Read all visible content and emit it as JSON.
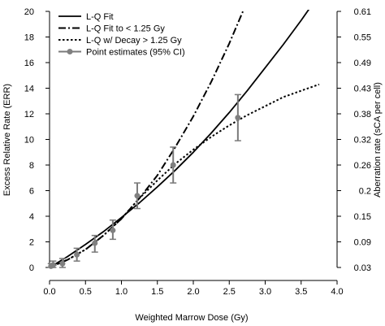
{
  "chart_data": {
    "type": "line",
    "xlabel": "Weighted Marrow Dose (Gy)",
    "ylabel": "Excess Relative Rate (ERR)",
    "y2label": "Aberration rate (sCA per cell)",
    "xlim": [
      0,
      4.0
    ],
    "ylim": [
      0,
      20
    ],
    "xticks": [
      "0.0",
      "0.5",
      "1.0",
      "1.5",
      "2.0",
      "2.5",
      "3.0",
      "3.5",
      "4.0"
    ],
    "yticks": [
      "0",
      "2",
      "4",
      "6",
      "8",
      "10",
      "12",
      "14",
      "16",
      "18",
      "20"
    ],
    "y2ticks": [
      "0.03",
      "0.09",
      "0.15",
      "0.2",
      "0.26",
      "0.32",
      "0.38",
      "0.43",
      "0.49",
      "0.55",
      "0.61"
    ],
    "grid": false,
    "legend_position": "top-left",
    "series": [
      {
        "name": "L-Q Fit",
        "style": "solid",
        "x": [
          0,
          0.25,
          0.5,
          0.75,
          1.0,
          1.25,
          1.5,
          1.75,
          2.0,
          2.25,
          2.5,
          2.75,
          3.0,
          3.25,
          3.5,
          3.75,
          4.0
        ],
        "y": [
          0,
          0.85,
          1.8,
          2.8,
          3.9,
          5.05,
          6.3,
          7.6,
          9.0,
          10.5,
          12.1,
          13.8,
          15.6,
          17.4,
          19.3,
          21.3,
          23.4
        ]
      },
      {
        "name": "L-Q Fit to < 1.25 Gy",
        "style": "dashdot",
        "x": [
          0,
          0.25,
          0.5,
          0.75,
          1.0,
          1.25,
          1.5,
          1.75,
          2.0,
          2.25,
          2.5,
          2.75,
          3.0,
          3.25
        ],
        "y": [
          0,
          0.6,
          1.4,
          2.5,
          3.8,
          5.4,
          7.2,
          9.4,
          11.8,
          14.5,
          17.5,
          20.8,
          24.4,
          28.3
        ]
      },
      {
        "name": "L-Q w/ Decay > 1.25 Gy",
        "style": "dotted",
        "x": [
          0,
          0.25,
          0.5,
          0.75,
          1.0,
          1.25,
          1.5,
          1.75,
          2.0,
          2.25,
          2.5,
          2.75,
          3.0,
          3.25,
          3.5,
          3.75
        ],
        "y": [
          0,
          0.6,
          1.4,
          2.5,
          3.8,
          5.4,
          6.8,
          8.1,
          9.2,
          10.2,
          11.1,
          11.9,
          12.6,
          13.3,
          13.8,
          14.3
        ]
      },
      {
        "name": "Point estimates (95% CI)",
        "style": "points",
        "x": [
          0.02,
          0.05,
          0.18,
          0.38,
          0.63,
          0.88,
          1.22,
          1.72,
          2.62
        ],
        "y": [
          0.1,
          0.2,
          0.3,
          1.0,
          1.9,
          2.9,
          5.6,
          8.0,
          11.7
        ],
        "y_low": [
          0,
          0,
          0,
          0.5,
          1.2,
          2.2,
          4.6,
          6.6,
          9.9
        ],
        "y_high": [
          0.3,
          0.5,
          0.7,
          1.5,
          2.5,
          3.7,
          6.6,
          9.4,
          13.5
        ]
      }
    ]
  }
}
